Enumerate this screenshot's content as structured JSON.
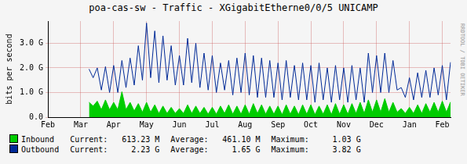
{
  "chart_data": {
    "type": "line",
    "title": "poa-cas-sw - Traffic - XGigabitEtherne0/0/5 UNICAMP",
    "y_label": "bits per second",
    "watermark": "RRDTOOL / TOBI OETIKER",
    "stat_labels": [
      "Current:",
      "Average:",
      "Maximum:"
    ],
    "categories": [
      "Feb",
      null,
      null,
      null,
      null,
      null,
      null,
      null,
      "Mar",
      null,
      null,
      null,
      null,
      null,
      null,
      null,
      "Apr",
      null,
      null,
      null,
      null,
      null,
      null,
      null,
      "May",
      null,
      null,
      null,
      null,
      null,
      null,
      null,
      "Jun",
      null,
      null,
      null,
      null,
      null,
      null,
      null,
      "Jul",
      null,
      null,
      null,
      null,
      null,
      null,
      null,
      "Aug",
      null,
      null,
      null,
      null,
      null,
      null,
      null,
      "Sep",
      null,
      null,
      null,
      null,
      null,
      null,
      null,
      "Oct",
      null,
      null,
      null,
      null,
      null,
      null,
      null,
      "Nov",
      null,
      null,
      null,
      null,
      null,
      null,
      null,
      "Dec",
      null,
      null,
      null,
      null,
      null,
      null,
      null,
      "Jan",
      null,
      null,
      null,
      null,
      null,
      null,
      null,
      "Feb",
      null,
      null
    ],
    "ylim": [
      0,
      3.9
    ],
    "yticks": [
      {
        "value": 0,
        "label": "0.0"
      },
      {
        "value": 1,
        "label": "1.0 G"
      },
      {
        "value": 2,
        "label": "2.0 G"
      },
      {
        "value": 3,
        "label": "3.0 G"
      }
    ],
    "grid": true,
    "series": [
      {
        "name": "Inbound",
        "color": "#00cc00",
        "type": "area",
        "stats": [
          "613.23 M",
          "461.10 M",
          "1.03 G"
        ],
        "values": [
          null,
          null,
          null,
          null,
          null,
          null,
          null,
          null,
          null,
          null,
          0.6,
          0.45,
          0.65,
          0.3,
          0.7,
          0.3,
          0.6,
          0.3,
          1.03,
          0.3,
          0.6,
          0.25,
          0.55,
          0.2,
          0.6,
          0.2,
          0.5,
          0.15,
          0.45,
          0.15,
          0.4,
          0.15,
          0.35,
          0.15,
          0.5,
          0.15,
          0.45,
          0.15,
          0.4,
          0.12,
          0.4,
          0.12,
          0.45,
          0.15,
          0.5,
          0.12,
          0.45,
          0.12,
          0.5,
          0.12,
          0.55,
          0.15,
          0.5,
          0.12,
          0.45,
          0.12,
          0.45,
          0.1,
          0.5,
          0.12,
          0.45,
          0.1,
          0.5,
          0.12,
          0.5,
          0.1,
          0.45,
          0.12,
          0.5,
          0.1,
          0.55,
          0.12,
          0.5,
          0.12,
          0.55,
          0.15,
          0.6,
          0.15,
          0.7,
          0.2,
          0.7,
          0.2,
          0.75,
          0.2,
          0.6,
          0.2,
          0.35,
          0.15,
          0.4,
          0.15,
          0.5,
          0.15,
          0.55,
          0.2,
          0.6,
          0.2,
          0.65,
          0.2,
          0.613
        ]
      },
      {
        "name": "Outbound",
        "color": "#002a97",
        "type": "line",
        "stats": [
          "2.23 G",
          "1.65 G",
          "3.82 G"
        ],
        "values": [
          null,
          null,
          null,
          null,
          null,
          null,
          null,
          null,
          null,
          null,
          1.95,
          1.6,
          2.0,
          1.1,
          2.05,
          1.0,
          2.1,
          1.0,
          2.3,
          1.2,
          2.4,
          1.3,
          2.9,
          1.5,
          3.82,
          1.6,
          3.5,
          1.4,
          3.3,
          1.5,
          2.9,
          1.3,
          2.5,
          1.3,
          3.2,
          1.4,
          3.0,
          1.2,
          2.6,
          1.1,
          2.5,
          1.0,
          2.2,
          1.1,
          2.3,
          0.9,
          2.4,
          1.0,
          2.6,
          0.9,
          2.5,
          0.8,
          2.4,
          0.8,
          2.3,
          0.8,
          2.2,
          0.7,
          2.3,
          0.8,
          2.1,
          0.7,
          2.2,
          0.7,
          2.1,
          0.6,
          2.2,
          0.7,
          2.0,
          0.6,
          2.1,
          0.7,
          2.0,
          0.6,
          2.1,
          0.7,
          2.0,
          0.6,
          2.6,
          1.0,
          2.5,
          1.0,
          2.6,
          1.0,
          2.3,
          1.1,
          1.2,
          0.8,
          1.6,
          0.7,
          1.8,
          0.8,
          1.9,
          0.8,
          2.0,
          0.9,
          2.1,
          0.7,
          2.23
        ]
      }
    ]
  }
}
